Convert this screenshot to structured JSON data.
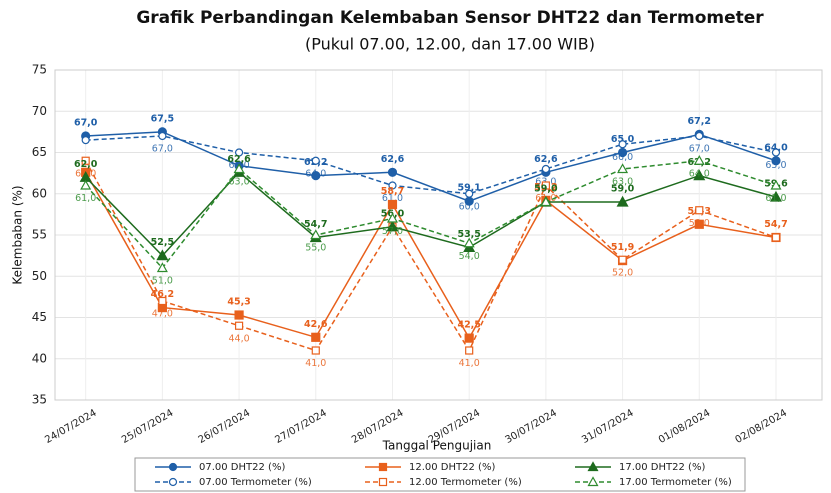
{
  "chart_data": {
    "type": "line",
    "title": "Grafik Perbandingan Kelembaban Sensor DHT22 dan Termometer",
    "subtitle": "(Pukul 07.00, 12.00, dan 17.00 WIB)",
    "x_label": "Tanggal Pengujian",
    "y_label": "Kelembaban (%)",
    "categories": [
      "24/07/2024",
      "25/07/2024",
      "26/07/2024",
      "27/07/2024",
      "28/07/2024",
      "29/07/2024",
      "30/07/2024",
      "31/07/2024",
      "01/08/2024",
      "02/08/2024"
    ],
    "ylim": [
      35,
      75
    ],
    "yticks": [
      35,
      40,
      45,
      50,
      55,
      60,
      65,
      70,
      75
    ],
    "grid": true,
    "legend": "bottom",
    "series": [
      {
        "name": "07.00 DHT22 (%)",
        "color": "#1f5fa8",
        "marker": "circle",
        "dashed": false,
        "values": [
          67.0,
          67.5,
          63.4,
          62.2,
          62.6,
          59.1,
          62.6,
          65.0,
          67.2,
          64.0
        ],
        "value_labels": [
          "67,0",
          "67,5",
          null,
          "62,2",
          "62,6",
          "59,1",
          "62,6",
          "65,0",
          "67,2",
          "64,0"
        ]
      },
      {
        "name": "07.00 Termometer (%)",
        "color": "#1f5fa8",
        "marker": "circle",
        "dashed": true,
        "values": [
          66.5,
          67.0,
          65.0,
          64.0,
          61.0,
          60.0,
          63.0,
          66.0,
          67.0,
          65.0
        ],
        "value_labels": [
          null,
          "67,0",
          "65,0",
          "64,0",
          "61,0",
          "60,0",
          "63,0",
          "66,0",
          "67,0",
          "65,0"
        ]
      },
      {
        "name": "12.00 DHT22 (%)",
        "color": "#e8601c",
        "marker": "square",
        "dashed": false,
        "values": [
          62.6,
          46.2,
          45.3,
          42.6,
          58.7,
          42.5,
          59.2,
          51.9,
          56.3,
          54.7
        ],
        "value_labels": [
          null,
          "46,2",
          "45,3",
          "42,6",
          "58,7",
          "42,5",
          "59,2",
          "51,9",
          "56,3",
          "54,7"
        ]
      },
      {
        "name": "12.00 Termometer (%)",
        "color": "#e8601c",
        "marker": "square",
        "dashed": true,
        "values": [
          64.0,
          47.0,
          44.0,
          41.0,
          56.0,
          41.0,
          61.0,
          52.0,
          58.0,
          54.7
        ],
        "value_labels": [
          "64,0",
          "47,0",
          "44,0",
          "41,0",
          null,
          "41,0",
          "61,0",
          "52,0",
          "58,0",
          null
        ]
      },
      {
        "name": "17.00 DHT22 (%)",
        "color": "#1e6b1e",
        "marker": "triangle",
        "dashed": false,
        "values": [
          62.0,
          52.5,
          62.6,
          54.7,
          56.0,
          53.5,
          59.0,
          59.0,
          62.2,
          59.6
        ],
        "value_labels": [
          "62,0",
          "52,5",
          "62,6",
          "54,7",
          "56,0",
          "53,5",
          "59,0",
          "59,0",
          "62,2",
          "59,6"
        ]
      },
      {
        "name": "17.00 Termometer (%)",
        "color": "#2e8b2e",
        "marker": "triangle",
        "dashed": true,
        "values": [
          61.0,
          51.0,
          63.0,
          55.0,
          57.0,
          54.0,
          59.0,
          63.0,
          64.0,
          61.0
        ],
        "value_labels": [
          "61,0",
          "51,0",
          "63,0",
          "55,0",
          "57,0",
          "54,0",
          null,
          "63,0",
          "64,0",
          "61,0"
        ]
      }
    ]
  }
}
